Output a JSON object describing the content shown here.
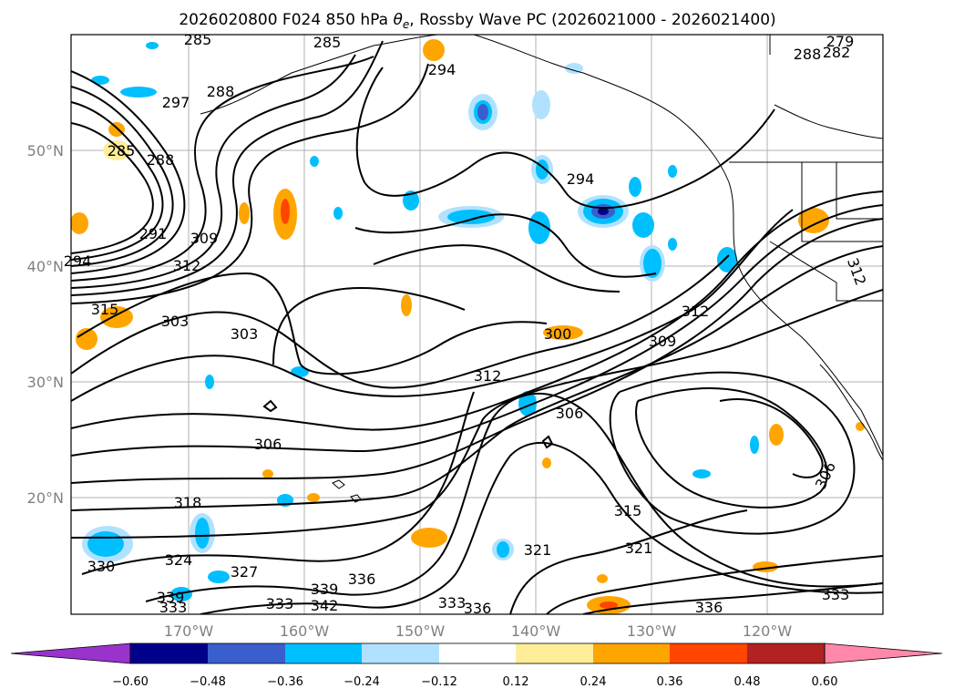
{
  "chart_data": {
    "type": "contour map",
    "title_prefix": "2026020800 F024 850 hPa ",
    "title_symbol": "θ",
    "title_subscript": "e",
    "title_suffix": ", Rossby Wave PC (2026021000 - 2026021400)",
    "x_tick_labels": [
      "170°W",
      "160°W",
      "150°W",
      "140°W",
      "130°W",
      "120°W"
    ],
    "y_tick_labels": [
      "50°N",
      "40°N",
      "30°N",
      "20°N"
    ],
    "contour_labels": [
      "285",
      "285",
      "294",
      "279",
      "288",
      "282",
      "297",
      "288",
      "285",
      "288",
      "294",
      "291",
      "309",
      "312",
      "294",
      "315",
      "303",
      "303",
      "300",
      "312",
      "309",
      "312",
      "306",
      "306",
      "318",
      "315",
      "321",
      "324",
      "321",
      "330",
      "327",
      "336",
      "339",
      "339",
      "342",
      "333",
      "333",
      "333",
      "336",
      "336",
      "333",
      "306",
      "312"
    ],
    "colorbar": {
      "tick_labels": [
        "−0.60",
        "−0.48",
        "−0.36",
        "−0.24",
        "−0.12",
        "0.12",
        "0.24",
        "0.36",
        "0.48",
        "0.60"
      ],
      "colors": [
        "#9933cc",
        "#00008b",
        "#3a5fcd",
        "#00bfff",
        "#b0e2ff",
        "#ffffff",
        "#ffee99",
        "#ffa500",
        "#ff4500",
        "#b22222",
        "#ff88aa"
      ]
    }
  }
}
